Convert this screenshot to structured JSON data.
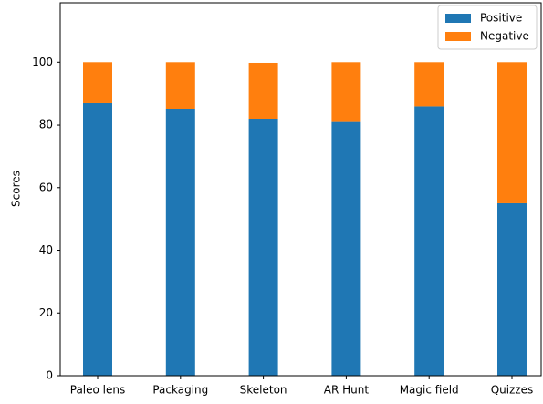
{
  "chart_data": {
    "type": "stacked_bar",
    "categories": [
      "Paleo lens",
      "Packaging",
      "Skeleton",
      "AR Hunt",
      "Magic field",
      "Quizzes"
    ],
    "series": [
      {
        "name": "Positive",
        "color": "#1f77b4",
        "values": [
          87,
          85,
          81.8,
          81,
          86,
          55
        ],
        "value_labels": [
          "87",
          "85",
          "82",
          "81",
          "86",
          "55"
        ]
      },
      {
        "name": "Negative",
        "color": "#ff7f0e",
        "values": [
          13,
          15,
          18,
          19,
          14,
          45
        ]
      }
    ],
    "y_label": "Scores",
    "ylim": [
      0,
      119
    ],
    "yticks": [
      0,
      20,
      40,
      60,
      80,
      100
    ],
    "legend": "upper right"
  }
}
